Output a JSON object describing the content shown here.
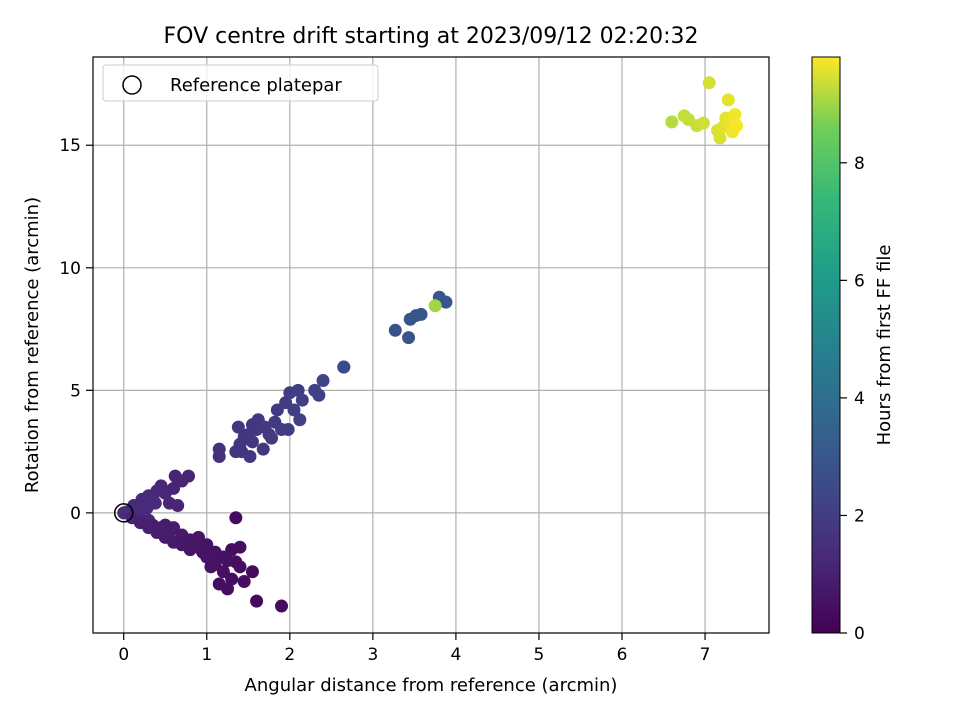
{
  "chart_data": {
    "type": "scatter",
    "title": "FOV centre drift starting at 2023/09/12 02:20:32",
    "xlabel": "Angular distance from reference (arcmin)",
    "ylabel": "Rotation from reference (arcmin)",
    "xlim": [
      -0.37,
      7.77
    ],
    "ylim": [
      -4.9,
      18.6
    ],
    "xticks": [
      0,
      1,
      2,
      3,
      4,
      5,
      6,
      7
    ],
    "yticks": [
      0,
      5,
      10,
      15
    ],
    "grid": true,
    "legend": {
      "placement": "top-left",
      "entries": [
        "Reference platepar"
      ]
    },
    "reference_point": {
      "x": 0,
      "y": 0
    },
    "colorbar": {
      "label": "Hours from first FF file",
      "range": [
        0,
        9.8
      ],
      "ticks": [
        0,
        2,
        4,
        6,
        8
      ],
      "colormap": "viridis"
    },
    "points": [
      {
        "x": 0.0,
        "y": 0.0,
        "c": 1.45
      },
      {
        "x": 0.05,
        "y": 0.05,
        "c": 1.4
      },
      {
        "x": 0.1,
        "y": 0.1,
        "c": 1.4
      },
      {
        "x": 0.15,
        "y": 0.2,
        "c": 1.4
      },
      {
        "x": 0.2,
        "y": 0.3,
        "c": 1.35
      },
      {
        "x": 0.25,
        "y": 0.5,
        "c": 1.3
      },
      {
        "x": 0.3,
        "y": 0.7,
        "c": 1.3
      },
      {
        "x": 0.35,
        "y": 0.6,
        "c": 1.3
      },
      {
        "x": 0.4,
        "y": 0.9,
        "c": 1.25
      },
      {
        "x": 0.45,
        "y": 1.1,
        "c": 1.2
      },
      {
        "x": 0.5,
        "y": 0.8,
        "c": 1.2
      },
      {
        "x": 0.55,
        "y": 0.4,
        "c": 1.2
      },
      {
        "x": 0.6,
        "y": 1.0,
        "c": 1.15
      },
      {
        "x": 0.65,
        "y": 0.3,
        "c": 1.15
      },
      {
        "x": 0.7,
        "y": 1.3,
        "c": 1.1
      },
      {
        "x": 0.62,
        "y": 1.5,
        "c": 1.1
      },
      {
        "x": 0.78,
        "y": 1.5,
        "c": 1.1
      },
      {
        "x": 0.38,
        "y": 0.4,
        "c": 1.3
      },
      {
        "x": 0.22,
        "y": 0.55,
        "c": 1.3
      },
      {
        "x": 0.12,
        "y": 0.3,
        "c": 1.35
      },
      {
        "x": 0.28,
        "y": 0.2,
        "c": 1.3
      },
      {
        "x": 0.18,
        "y": -0.1,
        "c": 1.3
      },
      {
        "x": 0.3,
        "y": -0.3,
        "c": 1.2
      },
      {
        "x": 0.1,
        "y": -0.2,
        "c": 1.1
      },
      {
        "x": 0.2,
        "y": -0.4,
        "c": 1.0
      },
      {
        "x": 0.3,
        "y": -0.6,
        "c": 0.95
      },
      {
        "x": 0.4,
        "y": -0.8,
        "c": 0.9
      },
      {
        "x": 0.5,
        "y": -1.0,
        "c": 0.85
      },
      {
        "x": 0.5,
        "y": -0.5,
        "c": 0.85
      },
      {
        "x": 0.6,
        "y": -0.6,
        "c": 0.8
      },
      {
        "x": 0.6,
        "y": -1.2,
        "c": 0.8
      },
      {
        "x": 0.7,
        "y": -0.9,
        "c": 0.75
      },
      {
        "x": 0.7,
        "y": -1.3,
        "c": 0.75
      },
      {
        "x": 0.8,
        "y": -1.1,
        "c": 0.7
      },
      {
        "x": 0.8,
        "y": -1.5,
        "c": 0.7
      },
      {
        "x": 0.9,
        "y": -1.0,
        "c": 0.65
      },
      {
        "x": 0.9,
        "y": -1.4,
        "c": 0.65
      },
      {
        "x": 1.0,
        "y": -1.3,
        "c": 0.6
      },
      {
        "x": 1.0,
        "y": -1.8,
        "c": 0.6
      },
      {
        "x": 1.1,
        "y": -1.6,
        "c": 0.55
      },
      {
        "x": 1.1,
        "y": -2.1,
        "c": 0.55
      },
      {
        "x": 1.2,
        "y": -1.8,
        "c": 0.5
      },
      {
        "x": 1.2,
        "y": -2.4,
        "c": 0.5
      },
      {
        "x": 1.3,
        "y": -1.5,
        "c": 0.45
      },
      {
        "x": 1.3,
        "y": -2.7,
        "c": 0.45
      },
      {
        "x": 1.15,
        "y": -2.9,
        "c": 0.45
      },
      {
        "x": 1.25,
        "y": -3.1,
        "c": 0.45
      },
      {
        "x": 1.4,
        "y": -2.2,
        "c": 0.4
      },
      {
        "x": 1.4,
        "y": -1.4,
        "c": 0.4
      },
      {
        "x": 1.35,
        "y": -2.0,
        "c": 0.4
      },
      {
        "x": 1.45,
        "y": -2.8,
        "c": 0.4
      },
      {
        "x": 1.55,
        "y": -2.4,
        "c": 0.35
      },
      {
        "x": 1.6,
        "y": -3.6,
        "c": 0.3
      },
      {
        "x": 1.9,
        "y": -3.8,
        "c": 0.3
      },
      {
        "x": 1.35,
        "y": -0.2,
        "c": 0.3
      },
      {
        "x": 1.05,
        "y": -2.2,
        "c": 0.55
      },
      {
        "x": 0.95,
        "y": -1.6,
        "c": 0.6
      },
      {
        "x": 1.25,
        "y": -1.95,
        "c": 0.5
      },
      {
        "x": 0.85,
        "y": -1.25,
        "c": 0.65
      },
      {
        "x": 0.55,
        "y": -0.8,
        "c": 0.85
      },
      {
        "x": 0.45,
        "y": -0.6,
        "c": 0.9
      },
      {
        "x": 0.35,
        "y": -0.5,
        "c": 0.95
      },
      {
        "x": 1.15,
        "y": 2.6,
        "c": 1.6
      },
      {
        "x": 1.15,
        "y": 2.3,
        "c": 1.6
      },
      {
        "x": 1.38,
        "y": 3.5,
        "c": 1.7
      },
      {
        "x": 1.4,
        "y": 2.8,
        "c": 1.7
      },
      {
        "x": 1.42,
        "y": 2.5,
        "c": 1.7
      },
      {
        "x": 1.5,
        "y": 3.2,
        "c": 1.75
      },
      {
        "x": 1.55,
        "y": 2.9,
        "c": 1.75
      },
      {
        "x": 1.55,
        "y": 3.6,
        "c": 1.75
      },
      {
        "x": 1.52,
        "y": 2.3,
        "c": 1.75
      },
      {
        "x": 1.6,
        "y": 3.4,
        "c": 1.8
      },
      {
        "x": 1.62,
        "y": 3.8,
        "c": 1.8
      },
      {
        "x": 1.68,
        "y": 2.6,
        "c": 1.8
      },
      {
        "x": 1.7,
        "y": 3.5,
        "c": 1.85
      },
      {
        "x": 1.75,
        "y": 3.2,
        "c": 1.85
      },
      {
        "x": 1.82,
        "y": 3.7,
        "c": 1.9
      },
      {
        "x": 1.85,
        "y": 4.2,
        "c": 1.9
      },
      {
        "x": 1.9,
        "y": 3.4,
        "c": 1.95
      },
      {
        "x": 1.95,
        "y": 4.5,
        "c": 2.0
      },
      {
        "x": 1.98,
        "y": 3.4,
        "c": 2.0
      },
      {
        "x": 2.0,
        "y": 4.9,
        "c": 2.0
      },
      {
        "x": 2.05,
        "y": 4.2,
        "c": 2.05
      },
      {
        "x": 2.1,
        "y": 5.0,
        "c": 2.05
      },
      {
        "x": 2.12,
        "y": 3.8,
        "c": 2.1
      },
      {
        "x": 2.15,
        "y": 4.6,
        "c": 2.1
      },
      {
        "x": 1.45,
        "y": 3.1,
        "c": 1.72
      },
      {
        "x": 1.35,
        "y": 2.5,
        "c": 1.7
      },
      {
        "x": 1.78,
        "y": 3.05,
        "c": 1.88
      },
      {
        "x": 2.3,
        "y": 5.0,
        "c": 2.2
      },
      {
        "x": 2.35,
        "y": 4.8,
        "c": 2.2
      },
      {
        "x": 2.4,
        "y": 5.4,
        "c": 2.25
      },
      {
        "x": 2.65,
        "y": 5.95,
        "c": 2.5
      },
      {
        "x": 2.65,
        "y": 5.95,
        "c": 2.5
      },
      {
        "x": 3.27,
        "y": 7.45,
        "c": 2.8
      },
      {
        "x": 3.43,
        "y": 7.15,
        "c": 2.85
      },
      {
        "x": 3.45,
        "y": 7.9,
        "c": 2.9
      },
      {
        "x": 3.52,
        "y": 8.05,
        "c": 2.9
      },
      {
        "x": 3.58,
        "y": 8.1,
        "c": 2.95
      },
      {
        "x": 3.8,
        "y": 8.8,
        "c": 3.0
      },
      {
        "x": 3.88,
        "y": 8.6,
        "c": 3.0
      },
      {
        "x": 3.75,
        "y": 8.45,
        "c": 9.0
      },
      {
        "x": 6.6,
        "y": 15.95,
        "c": 9.2
      },
      {
        "x": 6.75,
        "y": 16.2,
        "c": 9.3
      },
      {
        "x": 6.8,
        "y": 16.05,
        "c": 9.3
      },
      {
        "x": 6.9,
        "y": 15.8,
        "c": 9.35
      },
      {
        "x": 6.98,
        "y": 15.9,
        "c": 9.4
      },
      {
        "x": 7.05,
        "y": 17.55,
        "c": 9.45
      },
      {
        "x": 7.15,
        "y": 15.6,
        "c": 9.5
      },
      {
        "x": 7.18,
        "y": 15.3,
        "c": 9.5
      },
      {
        "x": 7.22,
        "y": 15.75,
        "c": 9.55
      },
      {
        "x": 7.25,
        "y": 16.1,
        "c": 9.6
      },
      {
        "x": 7.28,
        "y": 16.85,
        "c": 9.6
      },
      {
        "x": 7.3,
        "y": 15.9,
        "c": 9.65
      },
      {
        "x": 7.33,
        "y": 15.55,
        "c": 9.7
      },
      {
        "x": 7.36,
        "y": 16.25,
        "c": 9.7
      },
      {
        "x": 7.38,
        "y": 15.8,
        "c": 9.75
      }
    ]
  }
}
